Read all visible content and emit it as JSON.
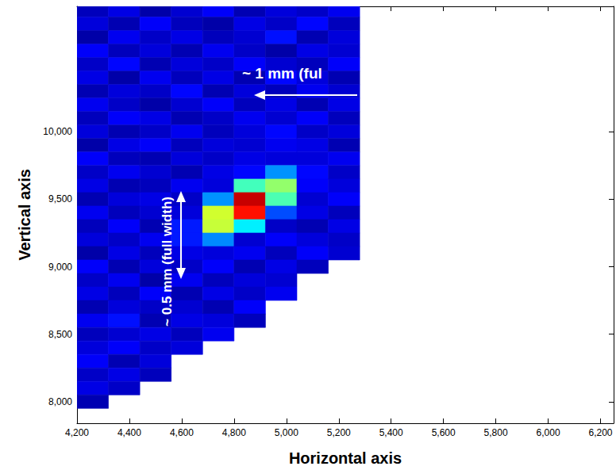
{
  "chart_data": {
    "type": "heatmap",
    "x_label": "Horizontal axis",
    "y_label": "Vertical axis",
    "annotations": [
      "~ 1 mm (ful",
      "~ 0.5 mm (full width)"
    ],
    "xlim": [
      4200,
      6250
    ],
    "ylim": [
      7840,
      10930
    ],
    "xticks": [
      4200,
      4400,
      4600,
      4800,
      5000,
      5200,
      5400,
      5600,
      5800,
      6000,
      6200
    ],
    "yticks": [
      8000,
      8500,
      9000,
      9500,
      10000
    ],
    "zlim": [
      0,
      1
    ],
    "grid": false,
    "x": [
      4260,
      4380,
      4500,
      4620,
      4740,
      4860,
      4980,
      5100,
      5220
    ],
    "y": [
      10900,
      10800,
      10700,
      10600,
      10500,
      10400,
      10300,
      10200,
      10100,
      10000,
      9900,
      9800,
      9700,
      9600,
      9500,
      9400,
      9300,
      9200,
      9100,
      9000,
      8900,
      8800,
      8700,
      8600,
      8500,
      8400,
      8300,
      8200,
      8100,
      8000
    ],
    "cells": [
      [
        0.06,
        0.1,
        0.04,
        0.08,
        0.12,
        0.05,
        0.09,
        0.07,
        0.11
      ],
      [
        0.09,
        0.05,
        0.12,
        0.06,
        0.04,
        0.1,
        0.07,
        0.13,
        0.06
      ],
      [
        0.04,
        0.11,
        0.07,
        0.1,
        0.06,
        0.08,
        0.14,
        0.05,
        0.09
      ],
      [
        0.12,
        0.06,
        0.09,
        0.05,
        0.11,
        0.07,
        0.04,
        0.1,
        0.08
      ],
      [
        0.07,
        0.13,
        0.05,
        0.09,
        0.07,
        0.12,
        0.08,
        0.06,
        0.12
      ],
      [
        0.1,
        0.04,
        0.11,
        0.06,
        0.1,
        0.05,
        0.13,
        0.09,
        0.05
      ],
      [
        0.05,
        0.09,
        0.07,
        0.13,
        0.05,
        0.09,
        0.06,
        0.11,
        0.08
      ],
      [
        0.11,
        0.07,
        0.04,
        0.08,
        0.12,
        0.06,
        0.1,
        0.05,
        0.1
      ],
      [
        0.06,
        0.12,
        0.1,
        0.05,
        0.07,
        0.11,
        0.08,
        0.12,
        0.06
      ],
      [
        0.09,
        0.05,
        0.07,
        0.11,
        0.06,
        0.09,
        0.13,
        0.07,
        0.09
      ],
      [
        0.04,
        0.1,
        0.12,
        0.06,
        0.09,
        0.08,
        0.11,
        0.1,
        0.05
      ],
      [
        0.12,
        0.06,
        0.05,
        0.09,
        0.07,
        0.1,
        0.09,
        0.09,
        0.11
      ],
      [
        0.07,
        0.11,
        0.08,
        0.05,
        0.1,
        0.13,
        0.27,
        0.13,
        0.07
      ],
      [
        0.1,
        0.05,
        0.06,
        0.11,
        0.09,
        0.44,
        0.52,
        0.12,
        0.09
      ],
      [
        0.05,
        0.09,
        0.1,
        0.07,
        0.27,
        0.93,
        0.45,
        0.08,
        0.12
      ],
      [
        0.11,
        0.06,
        0.08,
        0.09,
        0.58,
        0.86,
        0.2,
        0.1,
        0.06
      ],
      [
        0.06,
        0.12,
        0.05,
        0.15,
        0.57,
        0.36,
        0.07,
        0.05,
        0.1
      ],
      [
        0.09,
        0.07,
        0.11,
        0.15,
        0.26,
        0.08,
        0.12,
        0.09,
        0.07
      ],
      [
        0.04,
        0.1,
        0.06,
        0.1,
        0.09,
        0.11,
        0.06,
        0.12,
        0.08
      ],
      [
        0.12,
        0.05,
        0.09,
        0.07,
        0.12,
        0.05,
        0.1,
        0.06,
        null
      ],
      [
        0.07,
        0.11,
        0.04,
        0.11,
        0.06,
        0.09,
        0.08,
        null,
        null
      ],
      [
        0.1,
        0.06,
        0.12,
        0.05,
        0.1,
        0.07,
        0.11,
        null,
        null
      ],
      [
        0.05,
        0.09,
        0.07,
        0.08,
        0.05,
        0.12,
        null,
        null,
        null
      ],
      [
        0.11,
        0.14,
        0.05,
        0.1,
        0.09,
        0.06,
        null,
        null,
        null
      ],
      [
        0.06,
        0.08,
        0.1,
        0.06,
        0.11,
        null,
        null,
        null,
        null
      ],
      [
        0.09,
        0.12,
        0.07,
        0.09,
        null,
        null,
        null,
        null,
        null
      ],
      [
        0.12,
        0.05,
        0.09,
        null,
        null,
        null,
        null,
        null,
        null
      ],
      [
        0.07,
        0.1,
        0.06,
        null,
        null,
        null,
        null,
        null,
        null
      ],
      [
        0.1,
        0.07,
        null,
        null,
        null,
        null,
        null,
        null,
        null
      ],
      [
        0.05,
        null,
        null,
        null,
        null,
        null,
        null,
        null,
        null
      ]
    ]
  }
}
